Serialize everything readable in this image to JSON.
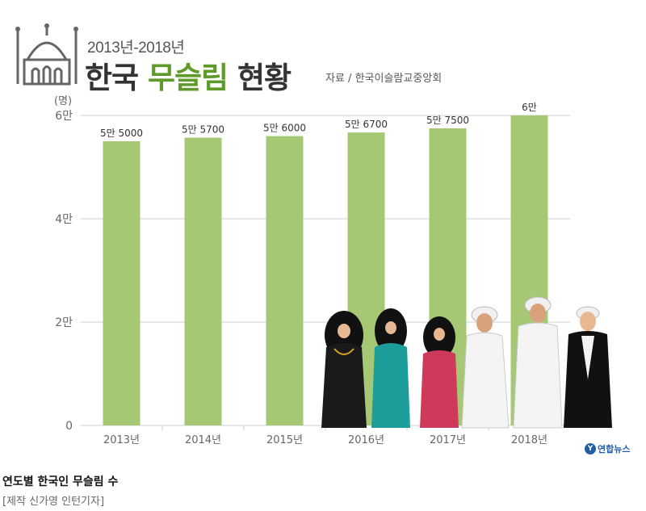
{
  "header": {
    "years_range": "2013년-2018년",
    "title_prefix": "한국 ",
    "title_accent": "무슬림",
    "title_suffix": " 현황",
    "source": "자료 / 한국이슬람교중앙회"
  },
  "colors": {
    "bar": "#a6c875",
    "accent": "#5f9b2b",
    "gridline": "#cfcfcf",
    "axis_text": "#666666"
  },
  "chart_data": {
    "type": "bar",
    "title": "한국 무슬림 현황",
    "ylabel": "(명)",
    "xlabel": "",
    "ylim": [
      0,
      60000
    ],
    "yticks": [
      0,
      20000,
      40000,
      60000
    ],
    "ytick_labels": [
      "0",
      "2만",
      "4만",
      "6만"
    ],
    "categories": [
      "2013년",
      "2014년",
      "2015년",
      "2016년",
      "2017년",
      "2018년"
    ],
    "values": [
      55000,
      55700,
      56000,
      56700,
      57500,
      60000
    ],
    "value_labels": [
      "5만 5000",
      "5만 5700",
      "5만 6000",
      "5만 6700",
      "5만 7500",
      "6만"
    ],
    "grid": true,
    "legend": "none"
  },
  "footer": {
    "caption": "연도별 한국인 무슬림 수",
    "credit": "[제작 신가영 인턴기자]",
    "logo_text": "연합뉴스",
    "logo_icon": "yonhap-logo-icon"
  }
}
